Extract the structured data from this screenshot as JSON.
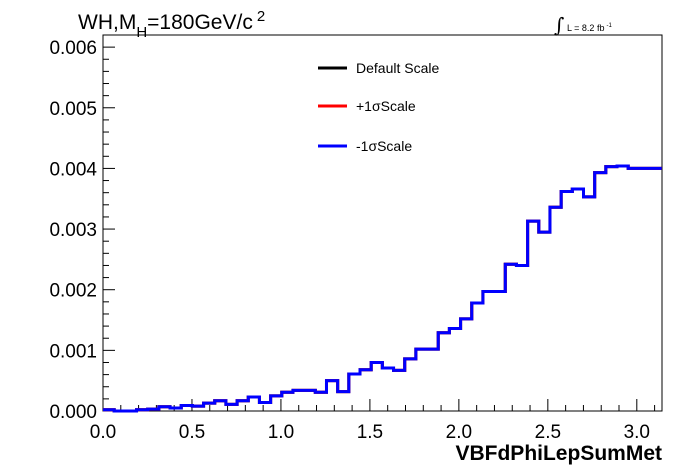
{
  "chart_data": {
    "type": "line",
    "title_main": "WH,M",
    "title_sub": "H",
    "title_rest": "=180GeV/c",
    "title_sup": "2",
    "lumi_label": "L = 8.2 fb",
    "lumi_sup": "-1",
    "xlabel": "VBFdPhiLepSumMet",
    "ylabel": "",
    "xlim": [
      0.0,
      3.1416
    ],
    "ylim": [
      0.0,
      0.0062
    ],
    "x_ticks": [
      "0.0",
      "0.5",
      "1.0",
      "1.5",
      "2.0",
      "2.5",
      "3.0"
    ],
    "x_tick_values": [
      0.0,
      0.5,
      1.0,
      1.5,
      2.0,
      2.5,
      3.0
    ],
    "y_ticks": [
      "0.000",
      "0.001",
      "0.002",
      "0.003",
      "0.004",
      "0.005",
      "0.006"
    ],
    "y_tick_values": [
      0.0,
      0.001,
      0.002,
      0.003,
      0.004,
      0.005,
      0.006
    ],
    "legend_position": "top-center",
    "bin_width": 0.0628,
    "series": [
      {
        "name": "Default Scale",
        "color": "#000000",
        "values": [
          2e-05,
          0.0,
          0.0,
          2e-05,
          3e-05,
          7e-05,
          5e-05,
          9e-05,
          8e-05,
          0.00013,
          0.00017,
          0.00011,
          0.00017,
          0.00023,
          0.00014,
          0.00025,
          0.00031,
          0.00034,
          0.00034,
          0.00031,
          0.0005,
          0.00032,
          0.00061,
          0.00068,
          0.0008,
          0.00071,
          0.00067,
          0.00086,
          0.00102,
          0.00102,
          0.00129,
          0.00136,
          0.00152,
          0.00178,
          0.00197,
          0.00197,
          0.00242,
          0.0024,
          0.00313,
          0.00295,
          0.00336,
          0.00362,
          0.00366,
          0.00353,
          0.00393,
          0.00403,
          0.00404,
          0.004,
          0.004,
          0.004
        ]
      },
      {
        "name": "+1σScale",
        "color": "#ff0000",
        "values": [
          2e-05,
          0.0,
          0.0,
          2e-05,
          3e-05,
          7e-05,
          5e-05,
          9e-05,
          8e-05,
          0.00013,
          0.00017,
          0.00011,
          0.00017,
          0.00023,
          0.00014,
          0.00025,
          0.00031,
          0.00034,
          0.00034,
          0.00031,
          0.0005,
          0.00032,
          0.00061,
          0.00068,
          0.0008,
          0.00071,
          0.00067,
          0.00086,
          0.00102,
          0.00102,
          0.00129,
          0.00136,
          0.00152,
          0.00178,
          0.00197,
          0.00197,
          0.00242,
          0.0024,
          0.00313,
          0.00295,
          0.00336,
          0.00362,
          0.00366,
          0.00353,
          0.00393,
          0.00403,
          0.00404,
          0.004,
          0.004,
          0.004
        ]
      },
      {
        "name": "-1σScale",
        "color": "#0000ff",
        "values": [
          2e-05,
          0.0,
          0.0,
          2e-05,
          3e-05,
          7e-05,
          5e-05,
          9e-05,
          8e-05,
          0.00013,
          0.00017,
          0.00011,
          0.00017,
          0.00023,
          0.00014,
          0.00025,
          0.00031,
          0.00034,
          0.00034,
          0.00031,
          0.0005,
          0.00032,
          0.00061,
          0.00068,
          0.0008,
          0.00071,
          0.00067,
          0.00086,
          0.00102,
          0.00102,
          0.00129,
          0.00136,
          0.00152,
          0.00178,
          0.00197,
          0.00197,
          0.00242,
          0.0024,
          0.00313,
          0.00295,
          0.00336,
          0.00362,
          0.00366,
          0.00353,
          0.00393,
          0.00403,
          0.00404,
          0.004,
          0.004,
          0.004
        ]
      }
    ]
  }
}
